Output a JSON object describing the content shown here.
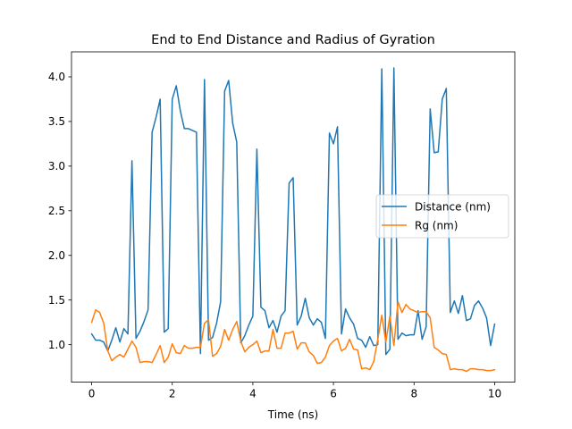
{
  "chart_data": {
    "type": "line",
    "title": "End to End Distance and Radius of Gyration",
    "xlabel": "Time (ns)",
    "ylabel": "",
    "xlim": [
      -0.5,
      10.5
    ],
    "ylim": [
      0.58,
      4.28
    ],
    "xticks": [
      0,
      2,
      4,
      6,
      8,
      10
    ],
    "xtick_labels": [
      "0",
      "2",
      "4",
      "6",
      "8",
      "10"
    ],
    "yticks": [
      1.0,
      1.5,
      2.0,
      2.5,
      3.0,
      3.5,
      4.0
    ],
    "ytick_labels": [
      "1.0",
      "1.5",
      "2.0",
      "2.5",
      "3.0",
      "3.5",
      "4.0"
    ],
    "grid": false,
    "legend_position": "center-right",
    "series": [
      {
        "name": "Distance (nm)",
        "color": "#1f77b4",
        "x": [
          0,
          0.1,
          0.2,
          0.3,
          0.4,
          0.5,
          0.6,
          0.7,
          0.8,
          0.9,
          1.0,
          1.1,
          1.2,
          1.3,
          1.4,
          1.5,
          1.6,
          1.7,
          1.8,
          1.9,
          2.0,
          2.1,
          2.2,
          2.3,
          2.4,
          2.5,
          2.6,
          2.7,
          2.8,
          2.9,
          3.0,
          3.1,
          3.2,
          3.3,
          3.4,
          3.5,
          3.6,
          3.7,
          3.8,
          3.9,
          4.0,
          4.1,
          4.2,
          4.3,
          4.4,
          4.5,
          4.6,
          4.7,
          4.8,
          4.9,
          5.0,
          5.1,
          5.2,
          5.3,
          5.4,
          5.5,
          5.6,
          5.7,
          5.8,
          5.9,
          6.0,
          6.1,
          6.2,
          6.3,
          6.4,
          6.5,
          6.6,
          6.7,
          6.8,
          6.9,
          7.0,
          7.1,
          7.2,
          7.3,
          7.4,
          7.5,
          7.6,
          7.7,
          7.8,
          7.9,
          8.0,
          8.1,
          8.2,
          8.3,
          8.4,
          8.5,
          8.6,
          8.7,
          8.8,
          8.9,
          9.0,
          9.1,
          9.2,
          9.3,
          9.4,
          9.5,
          9.6,
          9.7,
          9.8,
          9.9,
          10.0
        ],
        "values": [
          1.12,
          1.05,
          1.05,
          1.03,
          0.93,
          1.05,
          1.19,
          1.03,
          1.18,
          1.12,
          3.06,
          1.07,
          1.15,
          1.26,
          1.39,
          3.38,
          3.55,
          3.75,
          1.14,
          1.18,
          3.75,
          3.9,
          3.62,
          3.42,
          3.42,
          3.4,
          3.38,
          0.9,
          3.97,
          1.05,
          1.08,
          1.24,
          1.48,
          3.84,
          3.96,
          3.48,
          3.27,
          1.02,
          1.1,
          1.22,
          1.32,
          3.19,
          1.42,
          1.38,
          1.19,
          1.27,
          1.14,
          1.32,
          1.38,
          2.81,
          2.87,
          1.22,
          1.32,
          1.52,
          1.3,
          1.22,
          1.29,
          1.25,
          1.07,
          3.37,
          3.25,
          3.44,
          1.12,
          1.4,
          1.3,
          1.23,
          1.07,
          1.05,
          0.97,
          1.09,
          0.99,
          1.0,
          4.09,
          0.89,
          0.95,
          4.1,
          1.06,
          1.13,
          1.1,
          1.11,
          1.11,
          1.38,
          1.06,
          1.2,
          3.64,
          3.15,
          3.16,
          3.75,
          3.87,
          1.36,
          1.49,
          1.35,
          1.55,
          1.27,
          1.29,
          1.44,
          1.49,
          1.41,
          1.3,
          0.99,
          1.23
        ]
      },
      {
        "name": "Rg (nm)",
        "color": "#ff7f0e",
        "x": [
          0,
          0.1,
          0.2,
          0.3,
          0.4,
          0.5,
          0.6,
          0.7,
          0.8,
          0.9,
          1.0,
          1.1,
          1.2,
          1.3,
          1.4,
          1.5,
          1.6,
          1.7,
          1.8,
          1.9,
          2.0,
          2.1,
          2.2,
          2.3,
          2.4,
          2.5,
          2.6,
          2.7,
          2.8,
          2.9,
          3.0,
          3.1,
          3.2,
          3.3,
          3.4,
          3.5,
          3.6,
          3.7,
          3.8,
          3.9,
          4.0,
          4.1,
          4.2,
          4.3,
          4.4,
          4.5,
          4.6,
          4.7,
          4.8,
          4.9,
          5.0,
          5.1,
          5.2,
          5.3,
          5.4,
          5.5,
          5.6,
          5.7,
          5.8,
          5.9,
          6.0,
          6.1,
          6.2,
          6.3,
          6.4,
          6.5,
          6.6,
          6.7,
          6.8,
          6.9,
          7.0,
          7.1,
          7.2,
          7.3,
          7.4,
          7.5,
          7.6,
          7.7,
          7.8,
          7.9,
          8.0,
          8.1,
          8.2,
          8.3,
          8.4,
          8.5,
          8.6,
          8.7,
          8.8,
          8.9,
          9.0,
          9.1,
          9.2,
          9.3,
          9.4,
          9.5,
          9.6,
          9.7,
          9.8,
          9.9,
          10.0
        ],
        "values": [
          1.25,
          1.39,
          1.36,
          1.24,
          0.93,
          0.82,
          0.86,
          0.89,
          0.86,
          0.95,
          1.04,
          0.97,
          0.8,
          0.81,
          0.81,
          0.8,
          0.89,
          0.99,
          0.8,
          0.86,
          1.01,
          0.91,
          0.9,
          0.99,
          0.96,
          0.96,
          0.97,
          0.97,
          1.24,
          1.28,
          0.87,
          0.9,
          0.98,
          1.17,
          1.05,
          1.17,
          1.26,
          1.04,
          0.92,
          0.97,
          1.0,
          1.04,
          0.91,
          0.93,
          0.93,
          1.17,
          0.96,
          0.96,
          1.13,
          1.13,
          1.15,
          0.95,
          1.02,
          1.02,
          0.92,
          0.88,
          0.79,
          0.8,
          0.86,
          0.99,
          1.04,
          1.07,
          0.93,
          0.96,
          1.06,
          0.95,
          0.94,
          0.73,
          0.74,
          0.72,
          0.81,
          1.06,
          1.33,
          1.03,
          1.32,
          0.99,
          1.48,
          1.36,
          1.45,
          1.4,
          1.38,
          1.36,
          1.37,
          1.37,
          1.3,
          0.97,
          0.94,
          0.9,
          0.89,
          0.72,
          0.73,
          0.72,
          0.72,
          0.7,
          0.73,
          0.73,
          0.72,
          0.72,
          0.71,
          0.71,
          0.72
        ]
      }
    ]
  }
}
